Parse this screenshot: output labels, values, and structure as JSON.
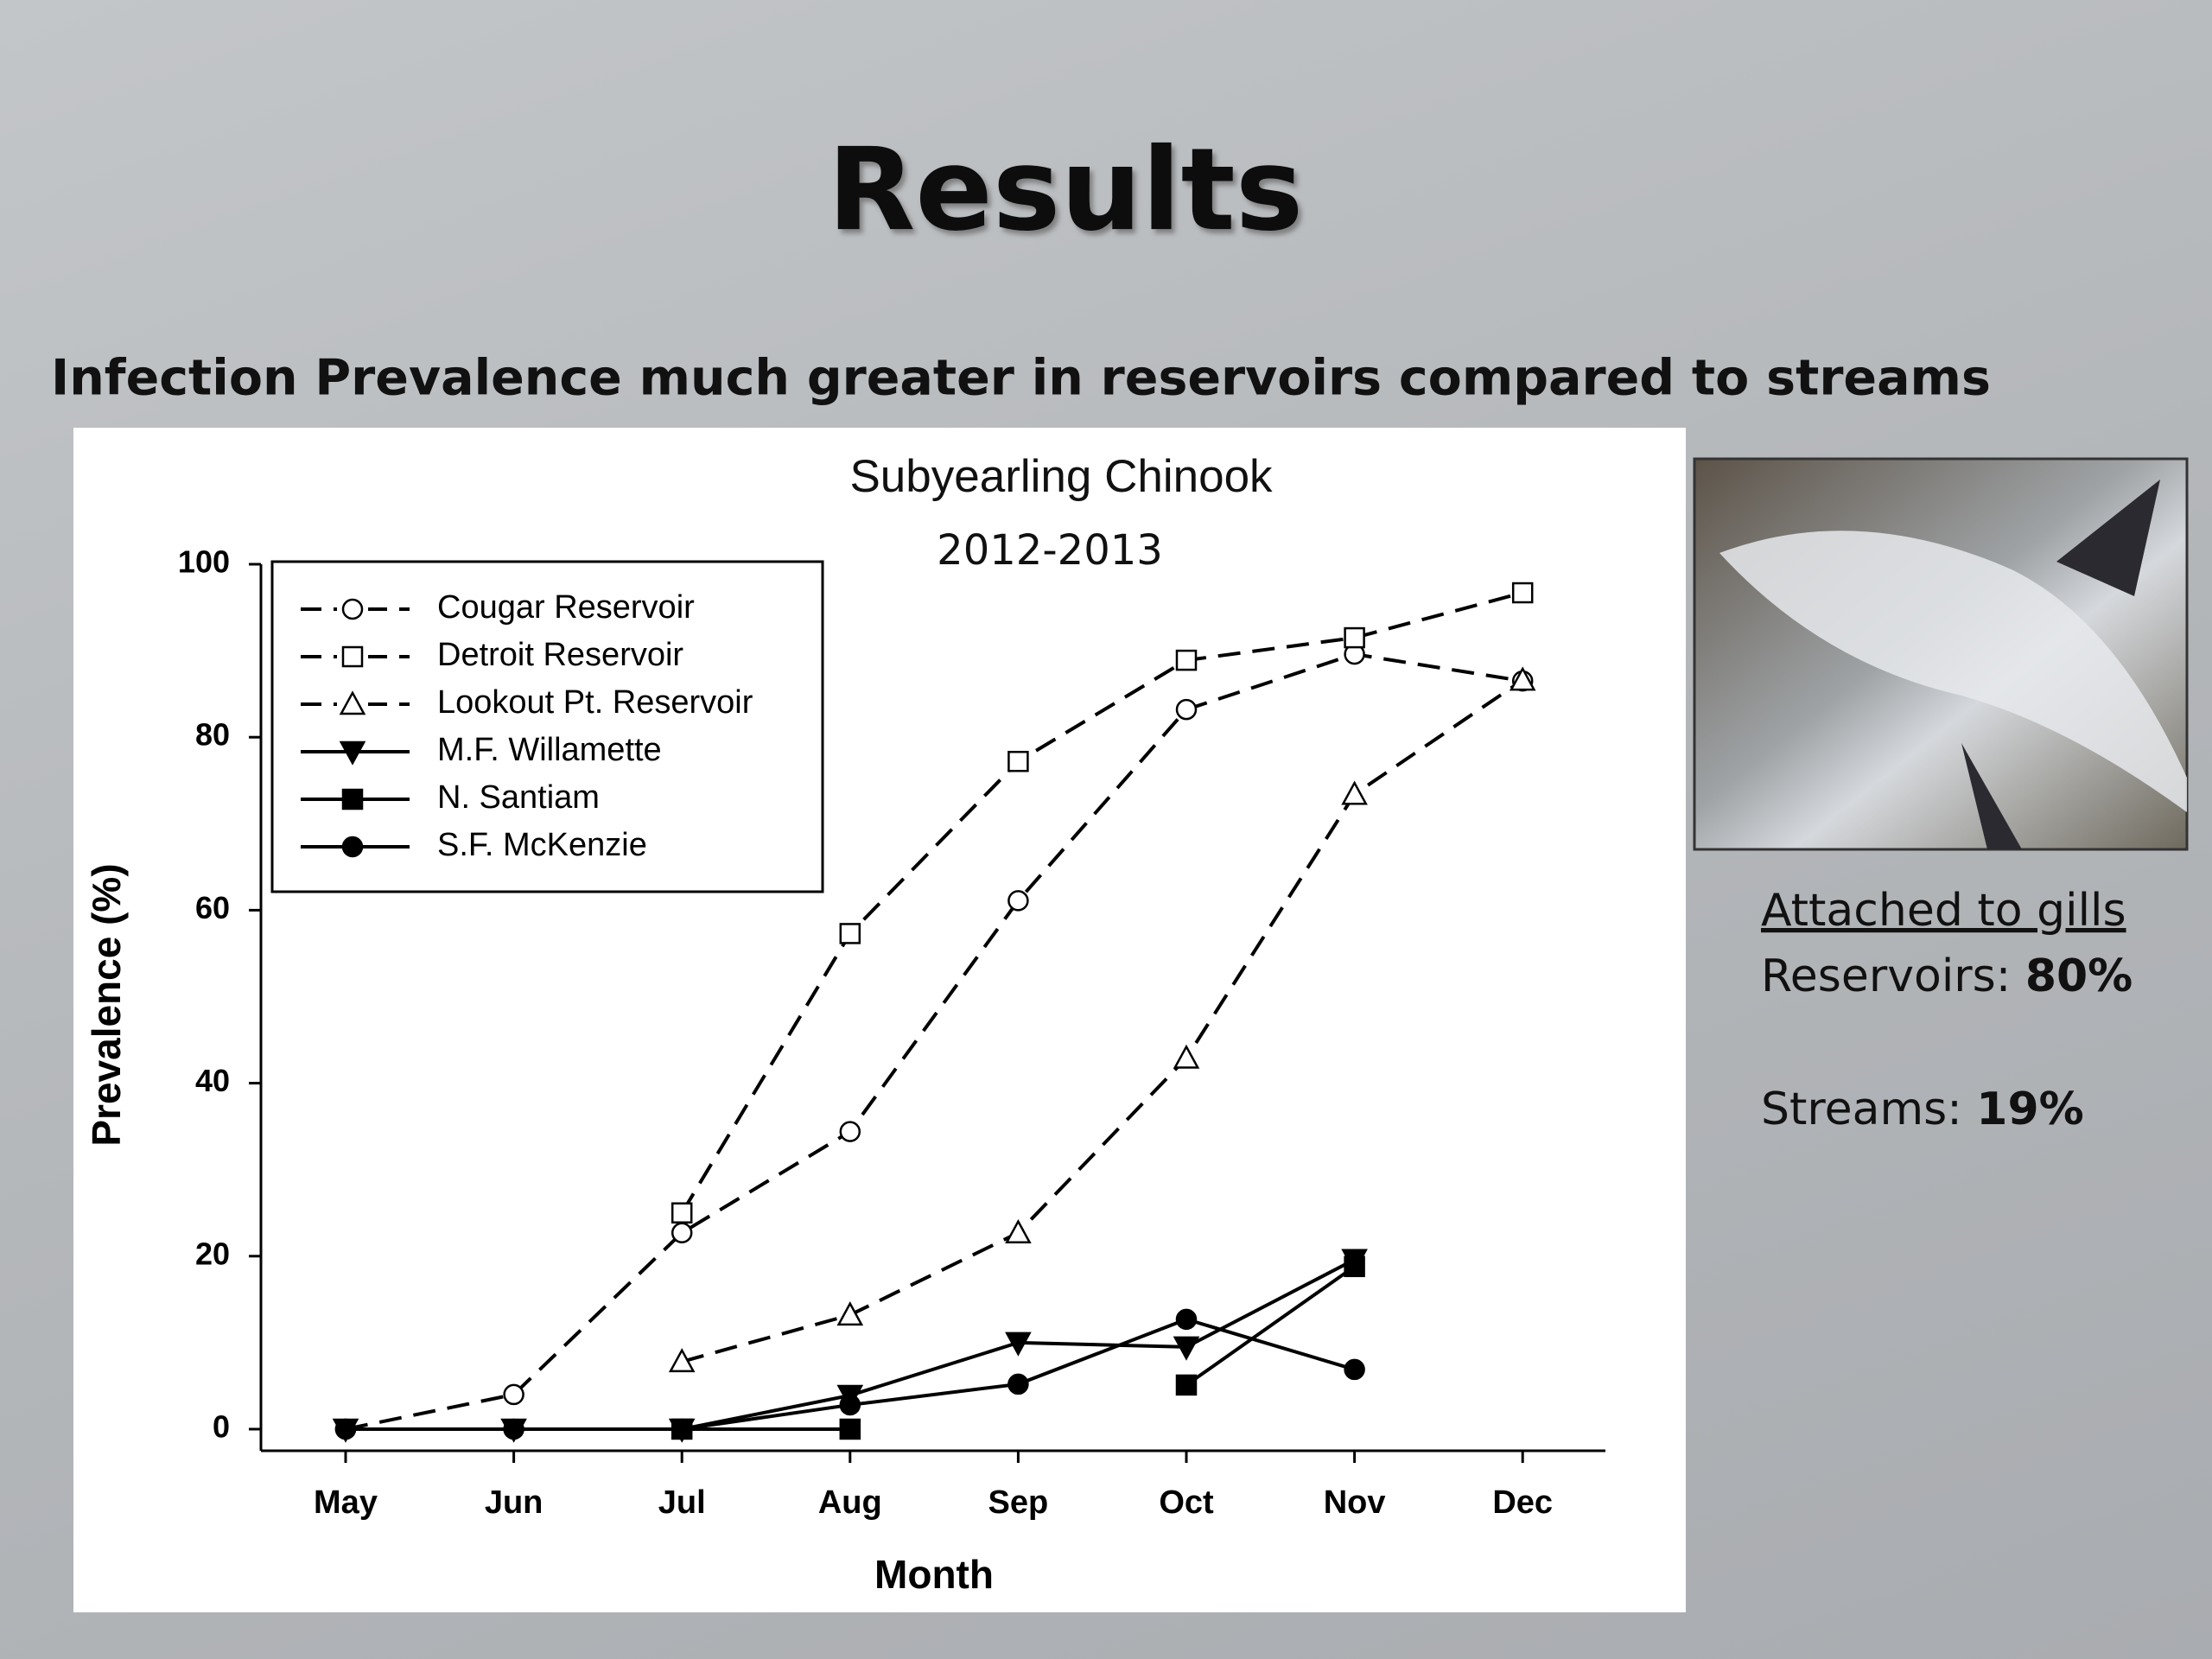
{
  "title": "Results",
  "subtitle": "Infection Prevalence much greater in reservoirs compared to streams",
  "chart_data": {
    "type": "line",
    "title": "Subyearling Chinook",
    "subtitle": "2012-2013",
    "x_label": "Month",
    "y_label": "Prevalence (%)",
    "categories": [
      "May",
      "Jun",
      "Jul",
      "Aug",
      "Sep",
      "Oct",
      "Nov",
      "Dec"
    ],
    "ylim": [
      -2.5,
      100
    ],
    "yticks": [
      0,
      20,
      40,
      60,
      80,
      100
    ],
    "legend": "upper left",
    "series": [
      {
        "name": "Cougar Reservoir",
        "color": "#000000",
        "dashed": true,
        "marker": "circle",
        "filled": false,
        "values": [
          0,
          4,
          22.7,
          34.4,
          61.1,
          83.2,
          89.6,
          86.5
        ]
      },
      {
        "name": "Detroit Reservoir",
        "color": "#000000",
        "dashed": true,
        "marker": "square",
        "filled": false,
        "values": [
          null,
          null,
          25,
          57.3,
          77.2,
          88.9,
          91.5,
          96.7
        ]
      },
      {
        "name": "Lookout Pt. Reservoir",
        "color": "#000000",
        "dashed": true,
        "marker": "triangle-up",
        "filled": false,
        "values": [
          null,
          null,
          7.8,
          13.2,
          22.7,
          42.9,
          73.4,
          86.6
        ]
      },
      {
        "name": "M.F. Willamette",
        "color": "#000000",
        "dashed": false,
        "marker": "triangle-down",
        "filled": true,
        "values": [
          0,
          0,
          0,
          3.9,
          10,
          9.5,
          19.6,
          null
        ]
      },
      {
        "name": "N. Santiam",
        "color": "#000000",
        "dashed": false,
        "marker": "square",
        "filled": true,
        "values": [
          null,
          null,
          0,
          0,
          null,
          5.1,
          18.8,
          null
        ]
      },
      {
        "name": "S.F. McKenzie",
        "color": "#000000",
        "dashed": false,
        "marker": "circle",
        "filled": true,
        "values": [
          0,
          0,
          0,
          2.8,
          5.2,
          12.7,
          6.9,
          null
        ]
      }
    ]
  },
  "side": {
    "heading": "Attached  to gills",
    "reservoirs_label": "Reservoirs: ",
    "reservoirs_value": "80%",
    "streams_label": "Streams: ",
    "streams_value": "19%"
  }
}
